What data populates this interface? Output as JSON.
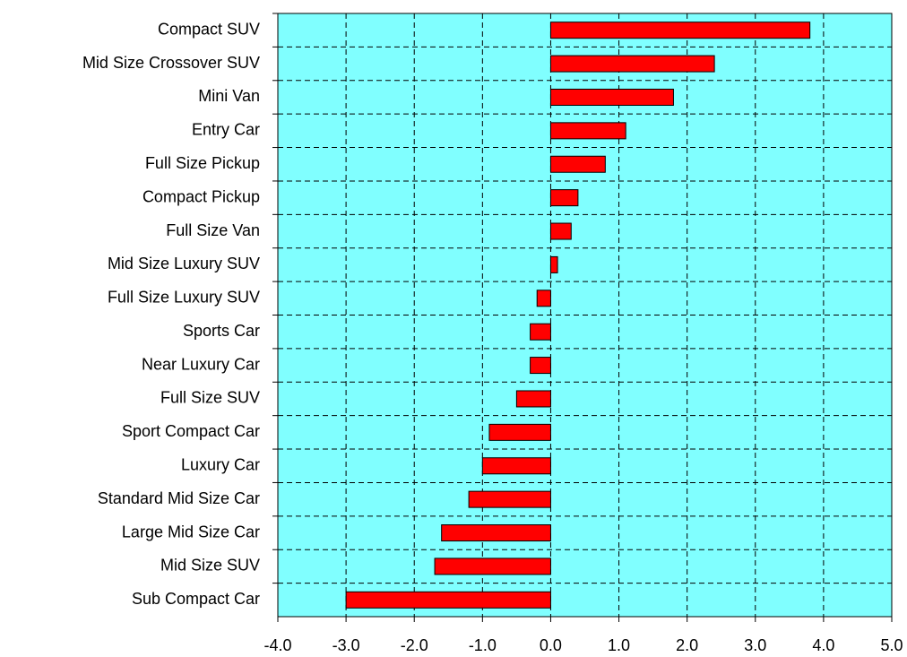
{
  "chart_data": {
    "type": "hbar",
    "categories": [
      "Compact SUV",
      "Mid Size Crossover SUV",
      "Mini Van",
      "Entry Car",
      "Full Size Pickup",
      "Compact Pickup",
      "Full Size Van",
      "Mid Size Luxury SUV",
      "Full Size Luxury SUV",
      "Sports Car",
      "Near Luxury Car",
      "Full Size SUV",
      "Sport Compact Car",
      "Luxury Car",
      "Standard Mid Size Car",
      "Large Mid Size Car",
      "Mid Size SUV",
      "Sub Compact Car"
    ],
    "values": [
      3.8,
      2.4,
      1.8,
      1.1,
      0.8,
      0.4,
      0.3,
      0.1,
      -0.2,
      -0.3,
      -0.3,
      -0.5,
      -0.9,
      -1.0,
      -1.2,
      -1.6,
      -1.7,
      -3.0
    ],
    "color": "#ff0000",
    "background": "#80ffff",
    "xlim": [
      -4,
      5
    ],
    "xticks": [
      {
        "value": -4,
        "label": "-4.0"
      },
      {
        "value": -3,
        "label": "-3.0"
      },
      {
        "value": -2,
        "label": "-2.0"
      },
      {
        "value": -1,
        "label": "-1.0"
      },
      {
        "value": 0,
        "label": "0.0"
      },
      {
        "value": 1,
        "label": "1.0"
      },
      {
        "value": 2,
        "label": "2.0"
      },
      {
        "value": 3,
        "label": "3.0"
      },
      {
        "value": 4,
        "label": "4.0"
      },
      {
        "value": 5,
        "label": "5.0"
      }
    ],
    "grid": true
  }
}
